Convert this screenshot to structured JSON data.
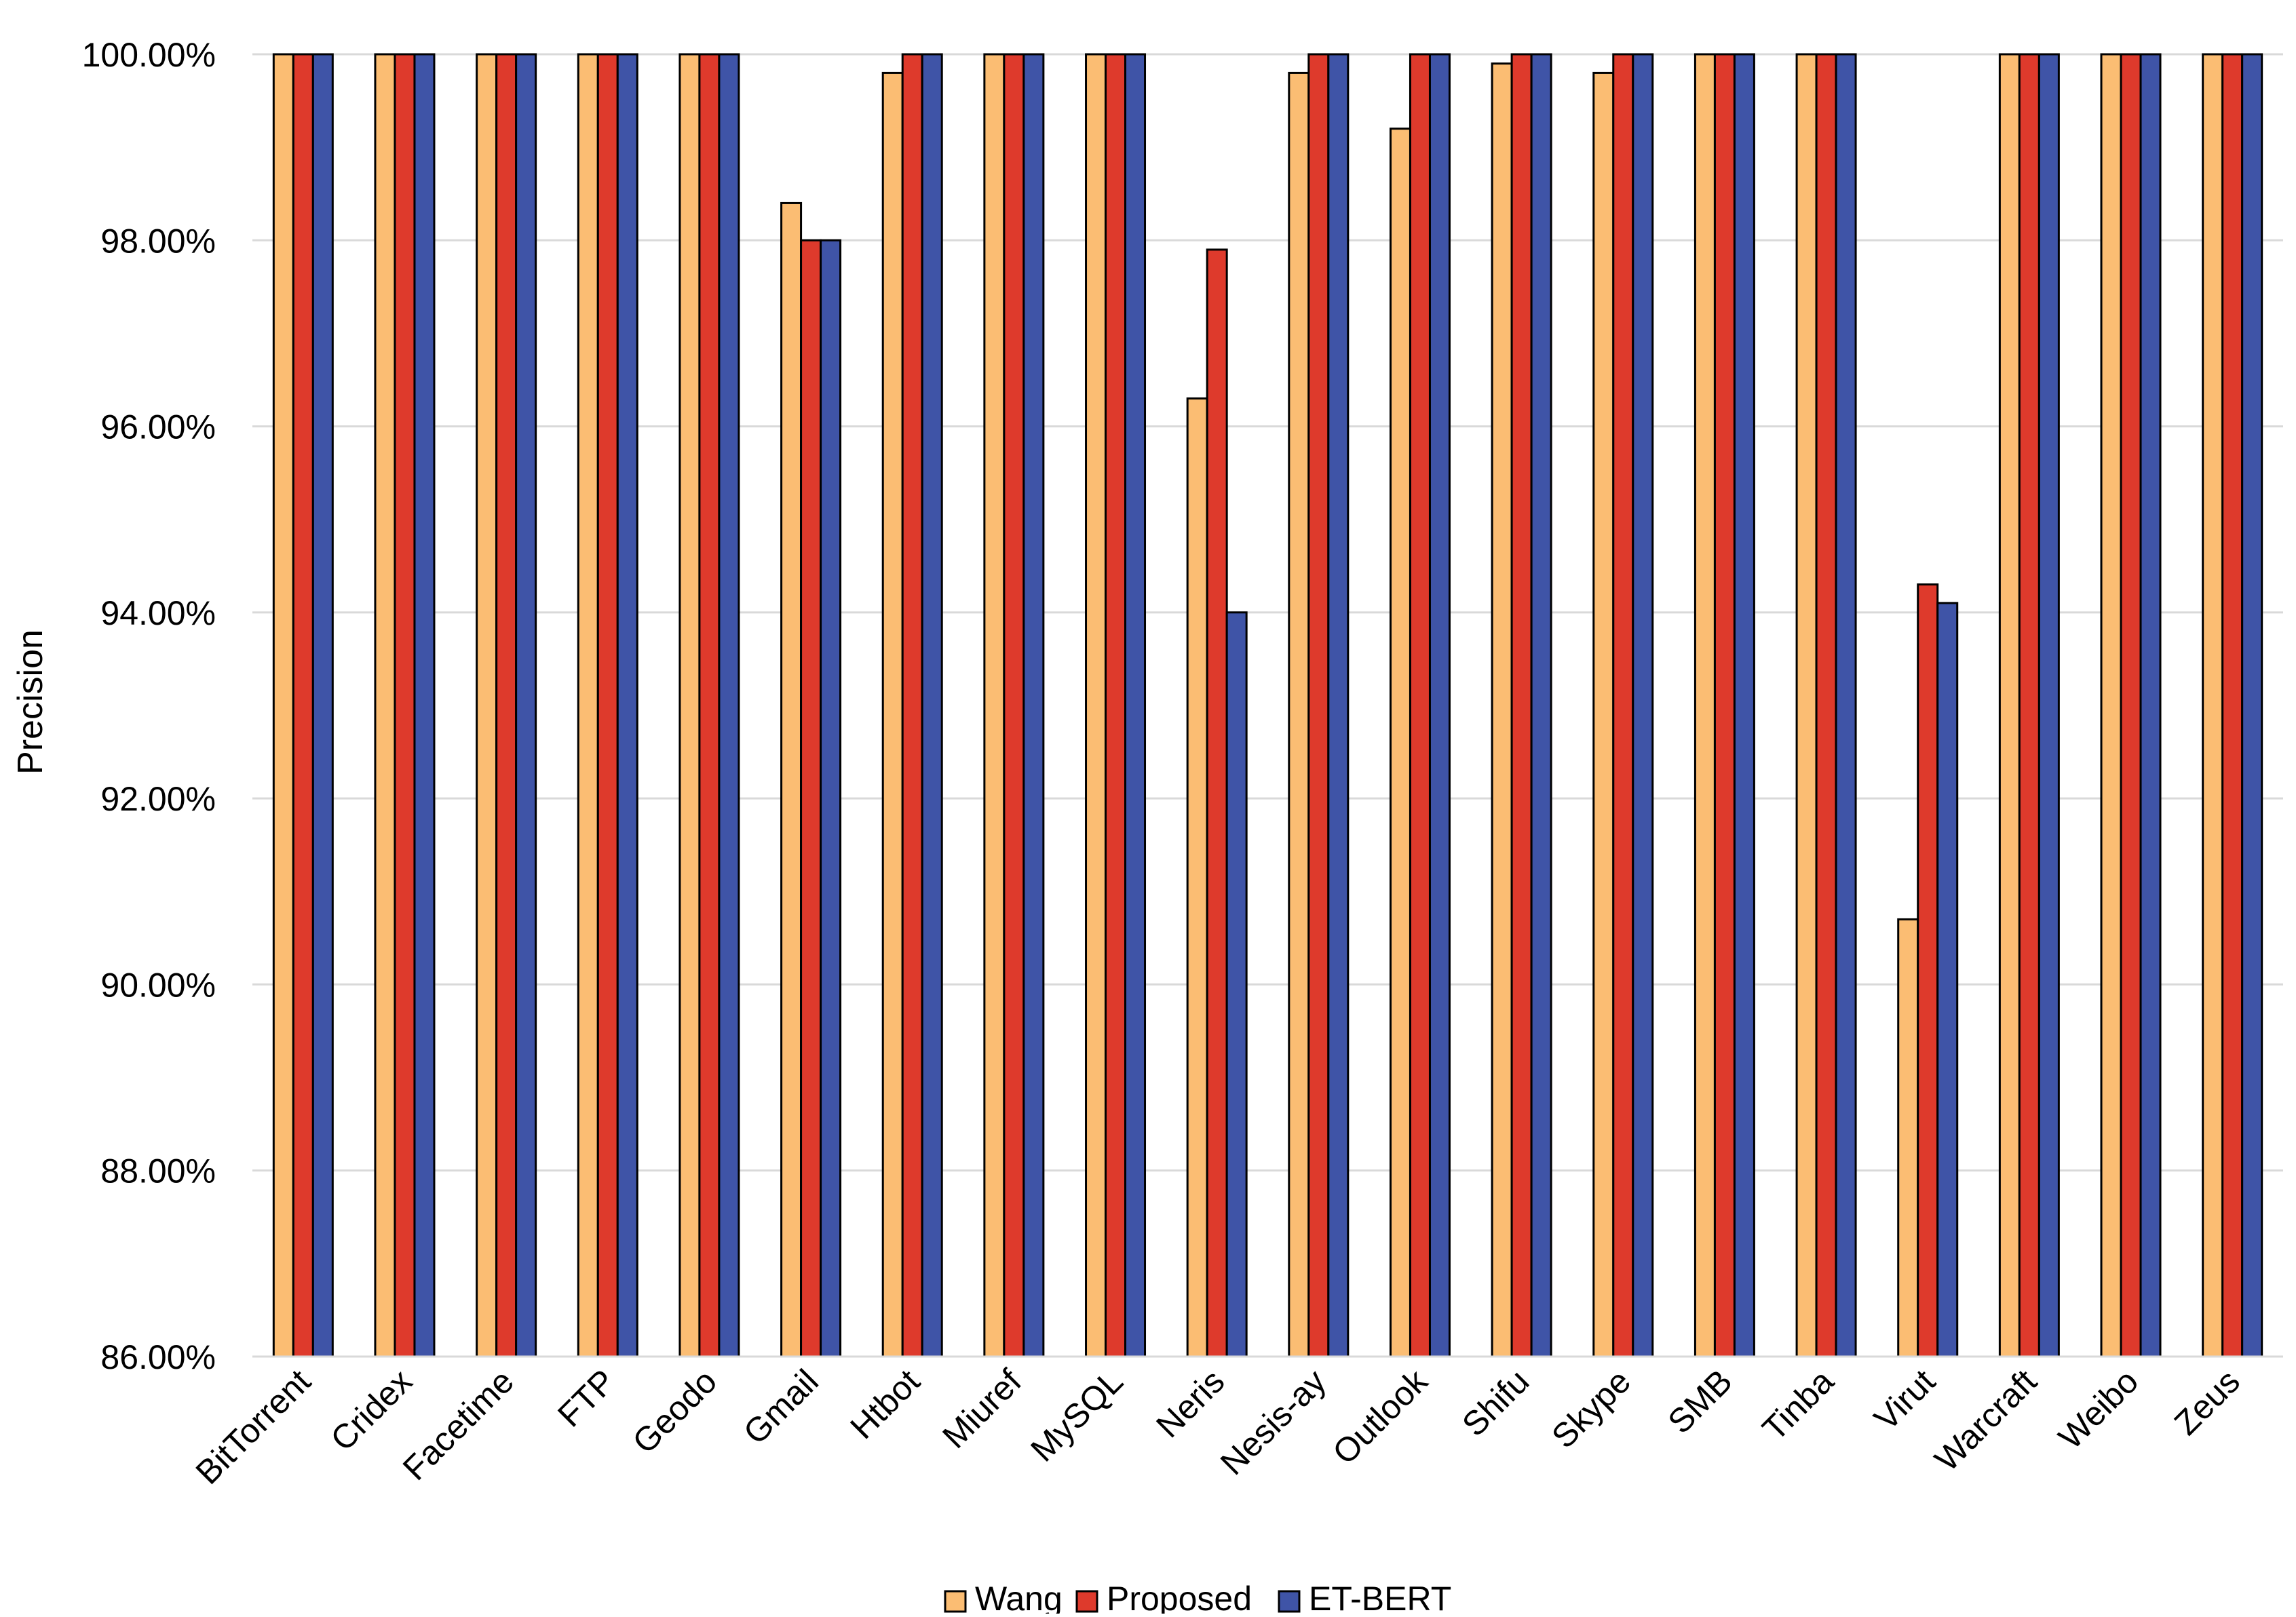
{
  "chart_data": {
    "type": "bar",
    "title": "",
    "xlabel": "",
    "ylabel": "Precision",
    "ylim": [
      86,
      100
    ],
    "yticks": [
      86,
      88,
      90,
      92,
      94,
      96,
      98,
      100
    ],
    "ytick_labels": [
      "86.00%",
      "88.00%",
      "90.00%",
      "92.00%",
      "94.00%",
      "96.00%",
      "98.00%",
      "100.00%"
    ],
    "grid": true,
    "legend_position": "bottom-center",
    "categories": [
      "BitTorrent",
      "Cridex",
      "Facetime",
      "FTP",
      "Geodo",
      "Gmail",
      "Htbot",
      "Miuref",
      "MySQL",
      "Neris",
      "Nesis-ay",
      "Outlook",
      "Shifu",
      "Skype",
      "SMB",
      "Tinba",
      "Virut",
      "Warcraft",
      "Weibo",
      "Zeus"
    ],
    "series": [
      {
        "name": "Wang",
        "color": "#FBBD73",
        "values": [
          100,
          100,
          100,
          100,
          100,
          98.4,
          99.8,
          100,
          100,
          96.3,
          99.8,
          99.2,
          99.9,
          99.8,
          100,
          100,
          90.7,
          100,
          100,
          100
        ]
      },
      {
        "name": "Proposed",
        "color": "#DE3A2C",
        "values": [
          100,
          100,
          100,
          100,
          100,
          98.0,
          100,
          100,
          100,
          97.9,
          100,
          100,
          100,
          100,
          100,
          100,
          94.3,
          100,
          100,
          100
        ]
      },
      {
        "name": "ET-BERT",
        "color": "#3F54A7",
        "values": [
          100,
          100,
          100,
          100,
          100,
          98.0,
          100,
          100,
          100,
          94.0,
          100,
          100,
          100,
          100,
          100,
          100,
          94.1,
          100,
          100,
          100
        ]
      }
    ]
  }
}
